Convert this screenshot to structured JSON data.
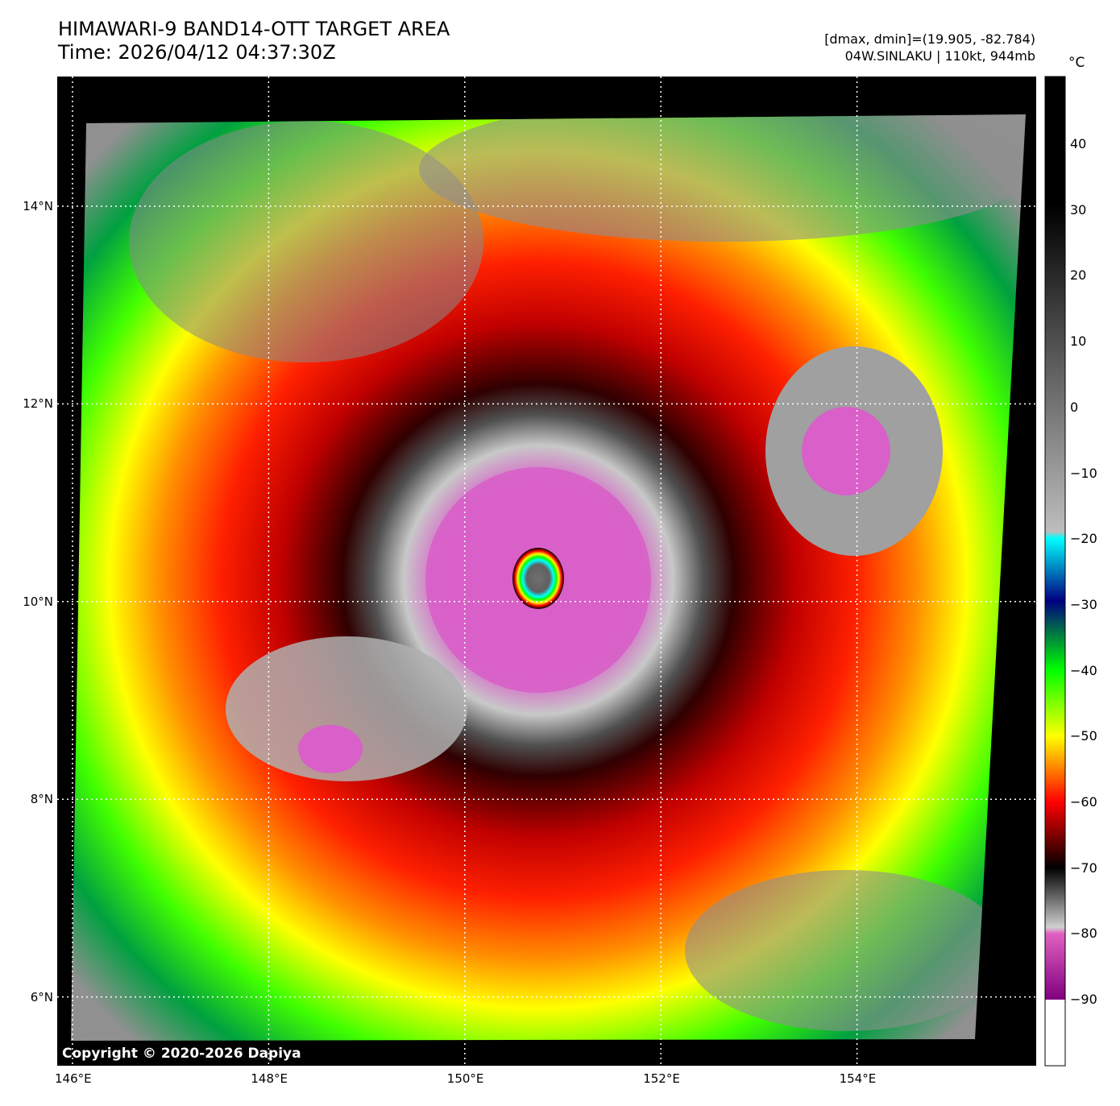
{
  "header": {
    "title_line1": "HIMAWARI-9 BAND14-OTT TARGET AREA",
    "title_line2": "Time: 2026/04/12 04:37:30Z",
    "info_line1": "[dmax, dmin]=(19.905, -82.784)",
    "info_line2": "04W.SINLAKU | 110kt, 944mb"
  },
  "map": {
    "lon_ticks": [
      "146°E",
      "148°E",
      "150°E",
      "152°E",
      "154°E"
    ],
    "lat_ticks": [
      "14°N",
      "12°N",
      "10°N",
      "8°N",
      "6°N"
    ],
    "lon_values": [
      146,
      148,
      150,
      152,
      154
    ],
    "lat_values": [
      14,
      12,
      10,
      8,
      6
    ],
    "gridlines": "dotted white",
    "copyright": "Copyright © 2020-2026 Dapiya"
  },
  "colorbar": {
    "unit": "°C",
    "range": [
      -100,
      50
    ],
    "ticks": [
      "40",
      "30",
      "20",
      "10",
      "0",
      "−10",
      "−20",
      "−30",
      "−40",
      "−50",
      "−60",
      "−70",
      "−80",
      "−90"
    ],
    "tick_values": [
      40,
      30,
      20,
      10,
      0,
      -10,
      -20,
      -30,
      -40,
      -50,
      -60,
      -70,
      -80,
      -90
    ],
    "colors": {
      "warm": "#000000",
      "cold_gray": "#bdbdbd",
      "cyan": "#00ffff",
      "navy": "#000080",
      "green": "#00ff00",
      "yellow": "#ffff00",
      "orange": "#ff8000",
      "red": "#ff0000",
      "dark_red": "#300000",
      "magenta": "#e060c0",
      "purple": "#800080",
      "white": "#ffffff"
    }
  }
}
